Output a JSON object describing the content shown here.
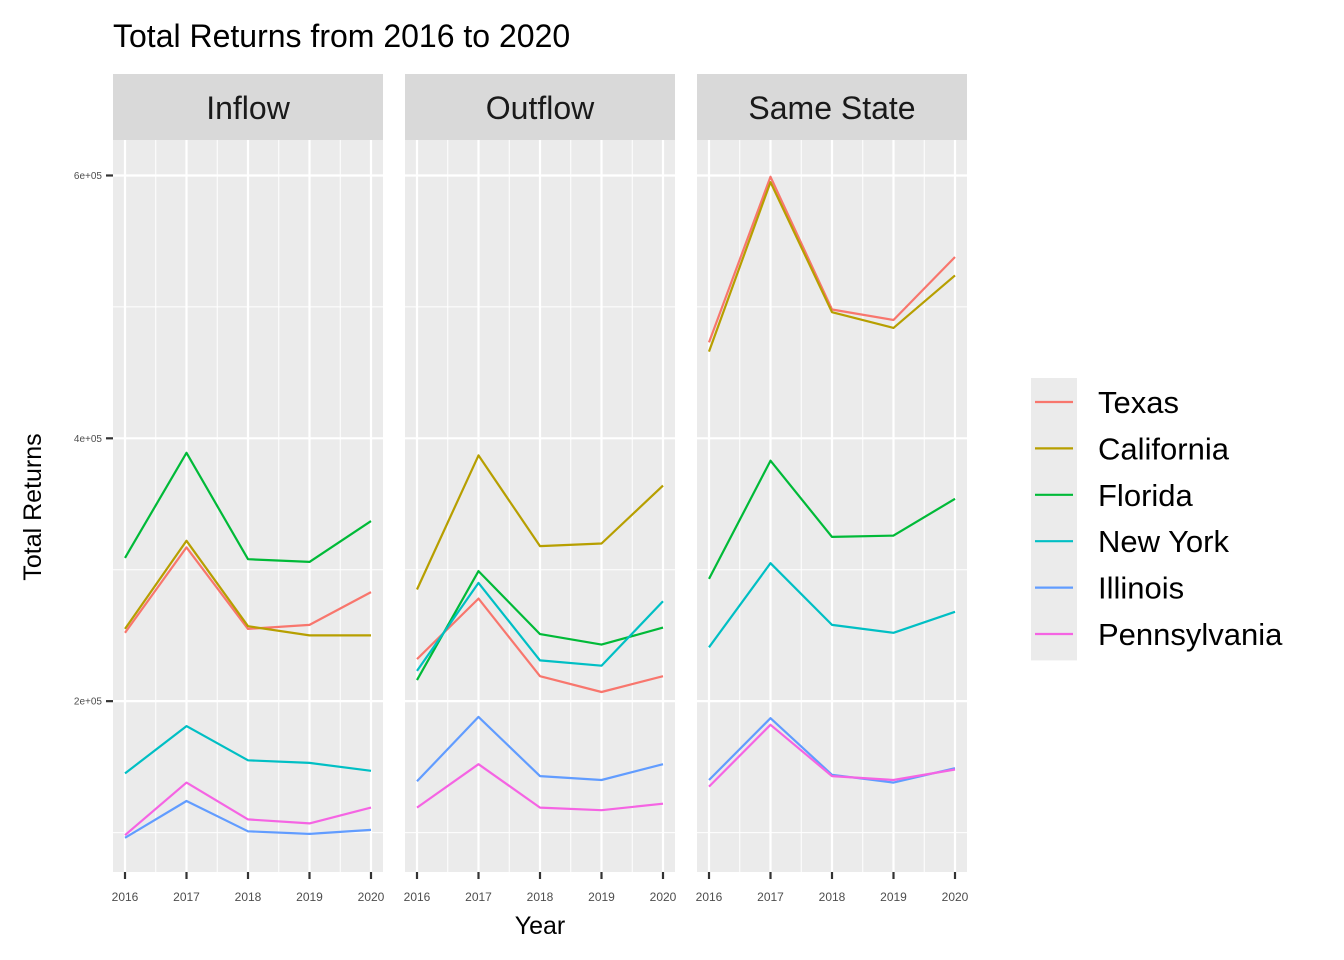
{
  "chart_data": {
    "type": "line",
    "title": "Total Returns from 2016 to 2020",
    "xlabel": "Year",
    "ylabel": "Total Returns",
    "x": [
      2016,
      2017,
      2018,
      2019,
      2020
    ],
    "x_tick_labels": [
      "2016",
      "2017",
      "2018",
      "2019",
      "2020"
    ],
    "ylim": [
      70000,
      627000
    ],
    "y_ticks": [
      200000,
      400000,
      600000
    ],
    "y_tick_labels": [
      "2e+05",
      "4e+05",
      "6e+05"
    ],
    "grid": true,
    "legend_position": "right",
    "colors": {
      "Texas": "#F8766D",
      "California": "#B79F00",
      "Florida": "#00BA38",
      "New York": "#00BFC4",
      "Illinois": "#619CFF",
      "Pennsylvania": "#F564E3"
    },
    "legend": [
      "Texas",
      "California",
      "Florida",
      "New York",
      "Illinois",
      "Pennsylvania"
    ],
    "panels": [
      {
        "name": "Inflow",
        "series": [
          {
            "name": "Texas",
            "values": [
              252000,
              317000,
              255000,
              258000,
              283000
            ]
          },
          {
            "name": "California",
            "values": [
              255000,
              322000,
              257000,
              250000,
              250000
            ]
          },
          {
            "name": "Florida",
            "values": [
              309000,
              389000,
              308000,
              306000,
              337000
            ]
          },
          {
            "name": "New York",
            "values": [
              145000,
              181000,
              155000,
              153000,
              147000
            ]
          },
          {
            "name": "Illinois",
            "values": [
              96000,
              124000,
              101000,
              99000,
              102000
            ]
          },
          {
            "name": "Pennsylvania",
            "values": [
              98000,
              138000,
              110000,
              107000,
              119000
            ]
          }
        ]
      },
      {
        "name": "Outflow",
        "series": [
          {
            "name": "Texas",
            "values": [
              232000,
              278000,
              219000,
              207000,
              219000
            ]
          },
          {
            "name": "California",
            "values": [
              285000,
              387000,
              318000,
              320000,
              364000
            ]
          },
          {
            "name": "Florida",
            "values": [
              216000,
              299000,
              251000,
              243000,
              256000
            ]
          },
          {
            "name": "New York",
            "values": [
              223000,
              290000,
              231000,
              227000,
              276000
            ]
          },
          {
            "name": "Illinois",
            "values": [
              139000,
              188000,
              143000,
              140000,
              152000
            ]
          },
          {
            "name": "Pennsylvania",
            "values": [
              119000,
              152000,
              119000,
              117000,
              122000
            ]
          }
        ]
      },
      {
        "name": "Same State",
        "series": [
          {
            "name": "Texas",
            "values": [
              473000,
              599000,
              498000,
              490000,
              538000
            ]
          },
          {
            "name": "California",
            "values": [
              466000,
              595000,
              496000,
              484000,
              524000
            ]
          },
          {
            "name": "Florida",
            "values": [
              293000,
              383000,
              325000,
              326000,
              354000
            ]
          },
          {
            "name": "New York",
            "values": [
              241000,
              305000,
              258000,
              252000,
              268000
            ]
          },
          {
            "name": "Illinois",
            "values": [
              140000,
              187000,
              144000,
              138000,
              149000
            ]
          },
          {
            "name": "Pennsylvania",
            "values": [
              135000,
              182000,
              143000,
              140000,
              148000
            ]
          }
        ]
      }
    ]
  }
}
